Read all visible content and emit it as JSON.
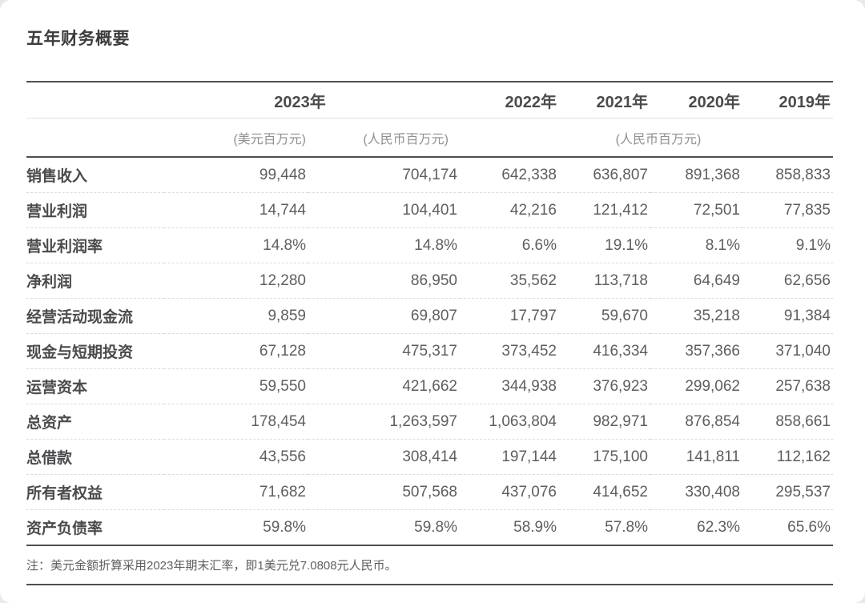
{
  "title": "五年财务概要",
  "table": {
    "year_headers": [
      "2023年",
      "2022年",
      "2021年",
      "2020年",
      "2019年"
    ],
    "unit_usd": "(美元百万元)",
    "unit_rmb": "(人民币百万元)",
    "unit_rmb_group": "(人民币百万元)",
    "rows": [
      {
        "label": "销售收入",
        "values": [
          "99,448",
          "704,174",
          "642,338",
          "636,807",
          "891,368",
          "858,833"
        ]
      },
      {
        "label": "营业利润",
        "values": [
          "14,744",
          "104,401",
          "42,216",
          "121,412",
          "72,501",
          "77,835"
        ]
      },
      {
        "label": "营业利润率",
        "values": [
          "14.8%",
          "14.8%",
          "6.6%",
          "19.1%",
          "8.1%",
          "9.1%"
        ]
      },
      {
        "label": "净利润",
        "values": [
          "12,280",
          "86,950",
          "35,562",
          "113,718",
          "64,649",
          "62,656"
        ]
      },
      {
        "label": "经营活动现金流",
        "values": [
          "9,859",
          "69,807",
          "17,797",
          "59,670",
          "35,218",
          "91,384"
        ]
      },
      {
        "label": "现金与短期投资",
        "values": [
          "67,128",
          "475,317",
          "373,452",
          "416,334",
          "357,366",
          "371,040"
        ]
      },
      {
        "label": "运营资本",
        "values": [
          "59,550",
          "421,662",
          "344,938",
          "376,923",
          "299,062",
          "257,638"
        ]
      },
      {
        "label": "总资产",
        "values": [
          "178,454",
          "1,263,597",
          "1,063,804",
          "982,971",
          "876,854",
          "858,661"
        ]
      },
      {
        "label": "总借款",
        "values": [
          "43,556",
          "308,414",
          "197,144",
          "175,100",
          "141,811",
          "112,162"
        ]
      },
      {
        "label": "所有者权益",
        "values": [
          "71,682",
          "507,568",
          "437,076",
          "414,652",
          "330,408",
          "295,537"
        ]
      },
      {
        "label": "资产负债率",
        "values": [
          "59.8%",
          "59.8%",
          "58.9%",
          "57.8%",
          "62.3%",
          "65.6%"
        ]
      }
    ]
  },
  "footnote": "注：美元金额折算采用2023年期末汇率，即1美元兑7.0808元人民币。",
  "colors": {
    "text_dark": "#4a4b4d",
    "text_body": "#5d5e60",
    "text_muted": "#8f9092",
    "rule_dark": "#4f4f51",
    "rule_light": "#e2e2e2",
    "background": "#ffffff"
  }
}
